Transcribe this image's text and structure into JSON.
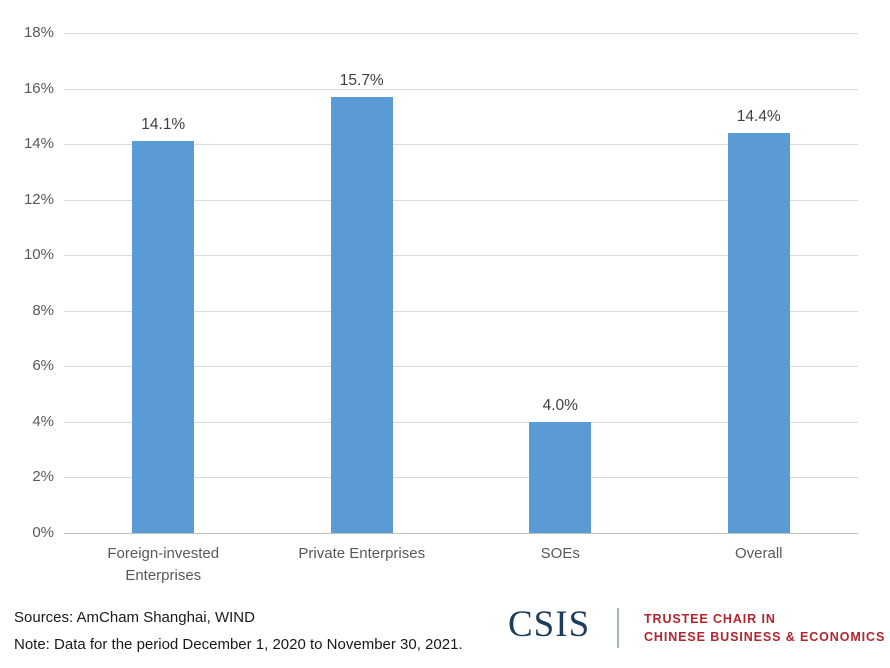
{
  "chart_data": {
    "type": "bar",
    "categories": [
      "Foreign-invested Enterprises",
      "Private Enterprises",
      "SOEs",
      "Overall"
    ],
    "values": [
      14.1,
      15.7,
      4.0,
      14.4
    ],
    "value_labels": [
      "14.1%",
      "15.7%",
      "4.0%",
      "14.4%"
    ],
    "title": "",
    "xlabel": "",
    "ylabel": "",
    "ylim": [
      0,
      18
    ],
    "ytick_step": 2,
    "ytick_labels": [
      "0%",
      "2%",
      "4%",
      "6%",
      "8%",
      "10%",
      "12%",
      "14%",
      "16%",
      "18%"
    ],
    "grid": true,
    "legend": "none",
    "bar_color": "#5B9BD5"
  },
  "colors": {
    "bar": "#5B9BD5",
    "gridline": "#D9D9D9",
    "axis_line": "#C0C0C0",
    "tick_label": "#595959",
    "category_label": "#595959",
    "value_label": "#404040",
    "note_text": "#1A1A1A",
    "csis_navy": "#1C3D5C",
    "csis_red": "#B3242C",
    "divider": "#9FB6C6"
  },
  "footer": {
    "sources_line": "Sources: AmCham Shanghai, WIND",
    "note_line": "Note: Data for the period December 1, 2020 to November 30, 2021.",
    "logo_text": "CSIS",
    "program_line1": "TRUSTEE CHAIR IN",
    "program_line2": "CHINESE BUSINESS & ECONOMICS"
  }
}
